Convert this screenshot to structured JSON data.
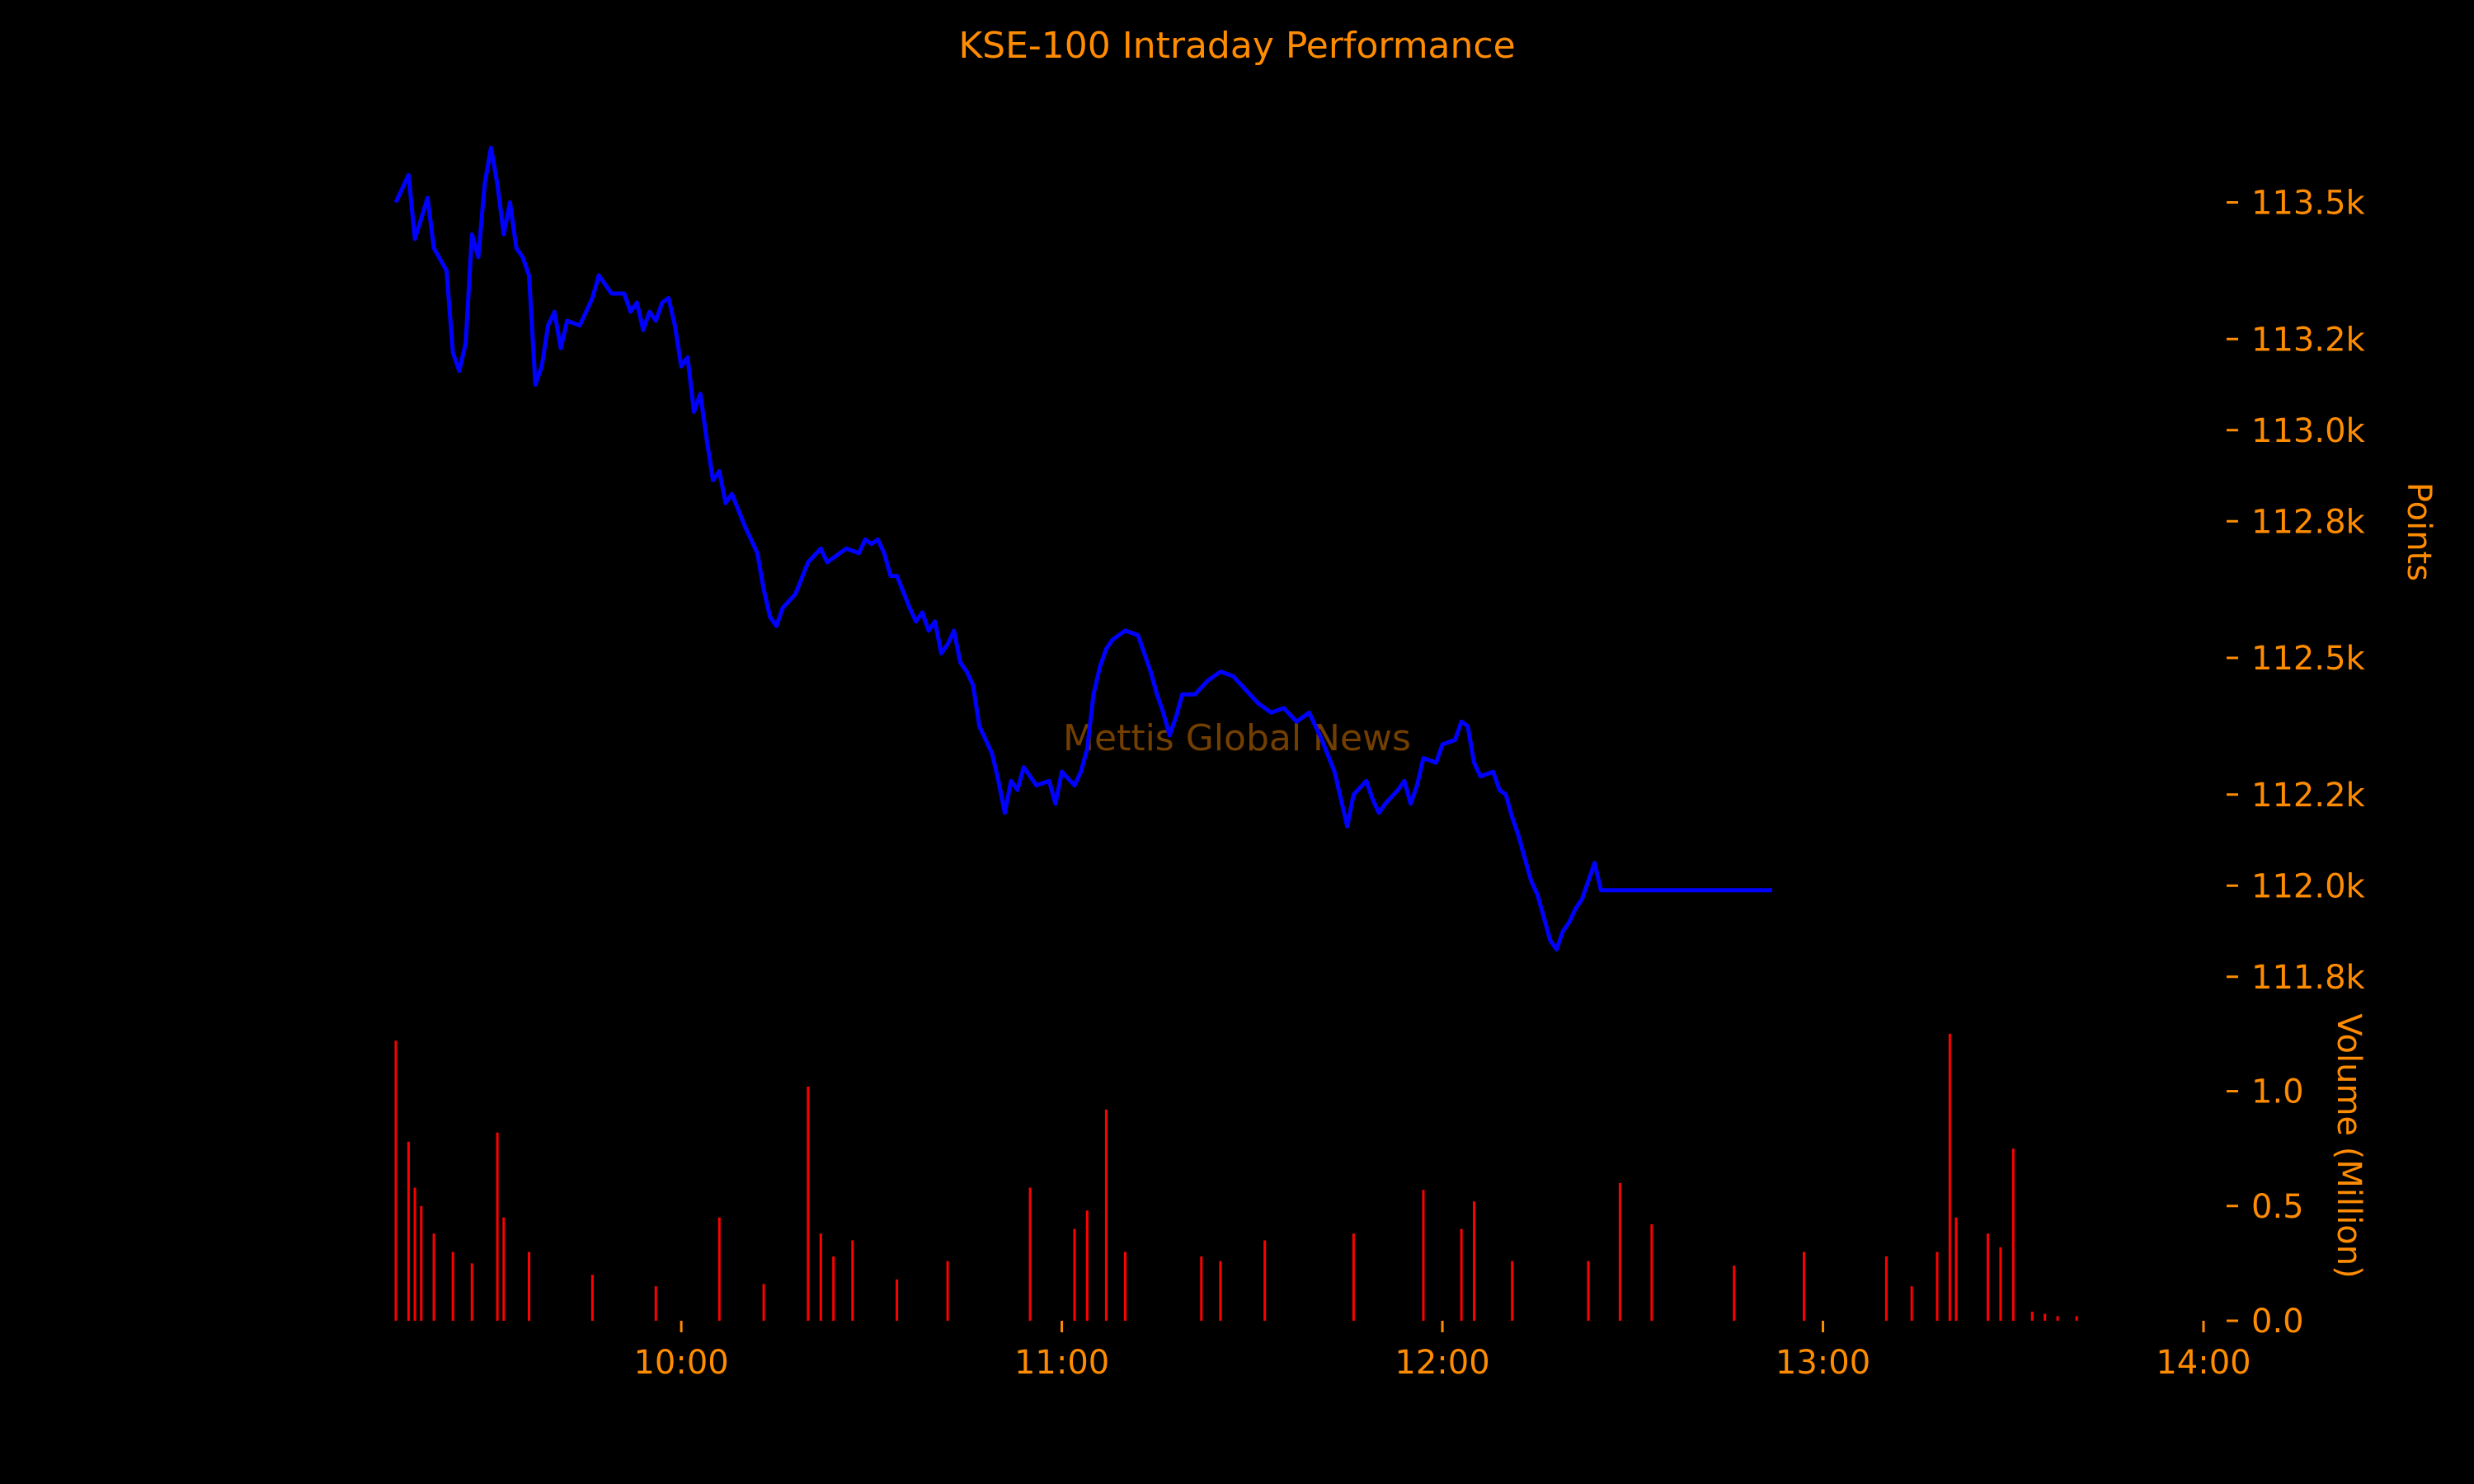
{
  "chart_data": [
    {
      "type": "line",
      "title": "KSE-100 Intraday Performance",
      "watermark": "Mettis Global News",
      "ylabel": "Points",
      "ylim": [
        111700,
        113700
      ],
      "yticks": [
        111800,
        112000,
        112200,
        112500,
        112800,
        113000,
        113200,
        113500
      ],
      "ytick_labels": [
        "111.8k",
        "112.0k",
        "112.2k",
        "112.5k",
        "112.8k",
        "113.0k",
        "113.2k",
        "113.5k"
      ],
      "xlim": [
        "09:15",
        "14:00"
      ],
      "series": [
        {
          "color": "#0000ff",
          "points": [
            [
              "09:15",
              113500
            ],
            [
              "09:17",
              113560
            ],
            [
              "09:18",
              113420
            ],
            [
              "09:20",
              113510
            ],
            [
              "09:21",
              113400
            ],
            [
              "09:23",
              113350
            ],
            [
              "09:24",
              113170
            ],
            [
              "09:25",
              113130
            ],
            [
              "09:26",
              113190
            ],
            [
              "09:27",
              113430
            ],
            [
              "09:28",
              113380
            ],
            [
              "09:29",
              113540
            ],
            [
              "09:30",
              113620
            ],
            [
              "09:31",
              113540
            ],
            [
              "09:32",
              113430
            ],
            [
              "09:33",
              113500
            ],
            [
              "09:34",
              113400
            ],
            [
              "09:35",
              113380
            ],
            [
              "09:36",
              113340
            ],
            [
              "09:37",
              113100
            ],
            [
              "09:38",
              113140
            ],
            [
              "09:39",
              113230
            ],
            [
              "09:40",
              113260
            ],
            [
              "09:41",
              113180
            ],
            [
              "09:42",
              113240
            ],
            [
              "09:44",
              113230
            ],
            [
              "09:45",
              113260
            ],
            [
              "09:46",
              113290
            ],
            [
              "09:47",
              113340
            ],
            [
              "09:49",
              113300
            ],
            [
              "09:51",
              113300
            ],
            [
              "09:52",
              113260
            ],
            [
              "09:53",
              113280
            ],
            [
              "09:54",
              113220
            ],
            [
              "09:55",
              113260
            ],
            [
              "09:56",
              113240
            ],
            [
              "09:57",
              113280
            ],
            [
              "09:58",
              113290
            ],
            [
              "09:59",
              113230
            ],
            [
              "10:00",
              113140
            ],
            [
              "10:01",
              113160
            ],
            [
              "10:02",
              113040
            ],
            [
              "10:03",
              113080
            ],
            [
              "10:04",
              112980
            ],
            [
              "10:05",
              112890
            ],
            [
              "10:06",
              112910
            ],
            [
              "10:07",
              112840
            ],
            [
              "10:08",
              112860
            ],
            [
              "10:10",
              112790
            ],
            [
              "10:12",
              112730
            ],
            [
              "10:13",
              112650
            ],
            [
              "10:14",
              112590
            ],
            [
              "10:15",
              112570
            ],
            [
              "10:16",
              112610
            ],
            [
              "10:18",
              112640
            ],
            [
              "10:20",
              112710
            ],
            [
              "10:22",
              112740
            ],
            [
              "10:23",
              112710
            ],
            [
              "10:24",
              112720
            ],
            [
              "10:26",
              112740
            ],
            [
              "10:28",
              112730
            ],
            [
              "10:29",
              112760
            ],
            [
              "10:30",
              112750
            ],
            [
              "10:31",
              112760
            ],
            [
              "10:32",
              112730
            ],
            [
              "10:33",
              112680
            ],
            [
              "10:34",
              112680
            ],
            [
              "10:36",
              112610
            ],
            [
              "10:37",
              112580
            ],
            [
              "10:38",
              112600
            ],
            [
              "10:39",
              112560
            ],
            [
              "10:40",
              112580
            ],
            [
              "10:41",
              112510
            ],
            [
              "10:42",
              112530
            ],
            [
              "10:43",
              112560
            ],
            [
              "10:44",
              112490
            ],
            [
              "10:45",
              112470
            ],
            [
              "10:46",
              112440
            ],
            [
              "10:47",
              112350
            ],
            [
              "10:48",
              112320
            ],
            [
              "10:49",
              112290
            ],
            [
              "10:50",
              112230
            ],
            [
              "10:51",
              112160
            ],
            [
              "10:52",
              112230
            ],
            [
              "10:53",
              112210
            ],
            [
              "10:54",
              112260
            ],
            [
              "10:56",
              112220
            ],
            [
              "10:58",
              112230
            ],
            [
              "10:59",
              112180
            ],
            [
              "11:00",
              112250
            ],
            [
              "11:02",
              112220
            ],
            [
              "11:03",
              112250
            ],
            [
              "11:04",
              112300
            ],
            [
              "11:05",
              112420
            ],
            [
              "11:06",
              112480
            ],
            [
              "11:07",
              112520
            ],
            [
              "11:08",
              112540
            ],
            [
              "11:10",
              112560
            ],
            [
              "11:12",
              112550
            ],
            [
              "11:13",
              112510
            ],
            [
              "11:14",
              112470
            ],
            [
              "11:15",
              112420
            ],
            [
              "11:16",
              112380
            ],
            [
              "11:17",
              112330
            ],
            [
              "11:18",
              112370
            ],
            [
              "11:19",
              112420
            ],
            [
              "11:21",
              112420
            ],
            [
              "11:23",
              112450
            ],
            [
              "11:25",
              112470
            ],
            [
              "11:27",
              112460
            ],
            [
              "11:29",
              112430
            ],
            [
              "11:31",
              112400
            ],
            [
              "11:33",
              112380
            ],
            [
              "11:35",
              112390
            ],
            [
              "11:37",
              112360
            ],
            [
              "11:39",
              112380
            ],
            [
              "11:41",
              112320
            ],
            [
              "11:43",
              112250
            ],
            [
              "11:44",
              112190
            ],
            [
              "11:45",
              112130
            ],
            [
              "11:46",
              112200
            ],
            [
              "11:48",
              112230
            ],
            [
              "11:49",
              112190
            ],
            [
              "11:50",
              112160
            ],
            [
              "11:51",
              112180
            ],
            [
              "11:53",
              112210
            ],
            [
              "11:54",
              112230
            ],
            [
              "11:55",
              112180
            ],
            [
              "11:56",
              112220
            ],
            [
              "11:57",
              112280
            ],
            [
              "11:59",
              112270
            ],
            [
              "12:00",
              112310
            ],
            [
              "12:02",
              112320
            ],
            [
              "12:03",
              112360
            ],
            [
              "12:04",
              112350
            ],
            [
              "12:05",
              112270
            ],
            [
              "12:06",
              112240
            ],
            [
              "12:08",
              112250
            ],
            [
              "12:09",
              112210
            ],
            [
              "12:10",
              112200
            ],
            [
              "12:11",
              112150
            ],
            [
              "12:12",
              112110
            ],
            [
              "12:13",
              112060
            ],
            [
              "12:14",
              112010
            ],
            [
              "12:15",
              111980
            ],
            [
              "12:16",
              111930
            ],
            [
              "12:17",
              111880
            ],
            [
              "12:18",
              111860
            ],
            [
              "12:19",
              111900
            ],
            [
              "12:20",
              111920
            ],
            [
              "12:21",
              111950
            ],
            [
              "12:22",
              111970
            ],
            [
              "12:23",
              112010
            ],
            [
              "12:24",
              112050
            ],
            [
              "12:25",
              111990
            ],
            [
              "12:26",
              111990
            ],
            [
              "12:30",
              111990
            ],
            [
              "12:35",
              111990
            ],
            [
              "12:40",
              111990
            ],
            [
              "12:45",
              111990
            ],
            [
              "12:50",
              111990
            ],
            [
              "12:52",
              111990
            ]
          ]
        }
      ]
    },
    {
      "type": "bar",
      "ylabel": "Volume (Million)",
      "ylim": [
        0,
        1.3
      ],
      "yticks": [
        0,
        0.5,
        1.0
      ],
      "ytick_labels": [
        "0.0",
        "0.5",
        "1.0"
      ],
      "xlim": [
        "09:15",
        "14:00"
      ],
      "xticks": [
        "10:00",
        "11:00",
        "12:00",
        "13:00",
        "14:00"
      ],
      "xtick_labels": [
        "10:00",
        "11:00",
        "12:00",
        "13:00",
        "14:00"
      ],
      "series": [
        {
          "color": "#ff0000",
          "points": [
            [
              "09:15",
              1.22
            ],
            [
              "09:17",
              0.78
            ],
            [
              "09:18",
              0.58
            ],
            [
              "09:19",
              0.5
            ],
            [
              "09:21",
              0.38
            ],
            [
              "09:24",
              0.3
            ],
            [
              "09:27",
              0.25
            ],
            [
              "09:31",
              0.82
            ],
            [
              "09:32",
              0.45
            ],
            [
              "09:36",
              0.3
            ],
            [
              "09:46",
              0.2
            ],
            [
              "09:56",
              0.15
            ],
            [
              "10:06",
              0.45
            ],
            [
              "10:13",
              0.16
            ],
            [
              "10:20",
              1.02
            ],
            [
              "10:22",
              0.38
            ],
            [
              "10:24",
              0.28
            ],
            [
              "10:27",
              0.35
            ],
            [
              "10:34",
              0.18
            ],
            [
              "10:42",
              0.26
            ],
            [
              "10:55",
              0.58
            ],
            [
              "11:02",
              0.4
            ],
            [
              "11:04",
              0.48
            ],
            [
              "11:07",
              0.92
            ],
            [
              "11:10",
              0.3
            ],
            [
              "11:22",
              0.28
            ],
            [
              "11:25",
              0.26
            ],
            [
              "11:32",
              0.35
            ],
            [
              "11:46",
              0.38
            ],
            [
              "11:57",
              0.57
            ],
            [
              "12:03",
              0.4
            ],
            [
              "12:05",
              0.52
            ],
            [
              "12:11",
              0.26
            ],
            [
              "12:23",
              0.26
            ],
            [
              "12:28",
              0.6
            ],
            [
              "12:33",
              0.42
            ],
            [
              "12:46",
              0.24
            ],
            [
              "12:57",
              0.3
            ],
            [
              "13:10",
              0.28
            ],
            [
              "13:14",
              0.15
            ],
            [
              "13:18",
              0.3
            ],
            [
              "13:20",
              1.25
            ],
            [
              "13:21",
              0.45
            ],
            [
              "13:26",
              0.38
            ],
            [
              "13:28",
              0.32
            ],
            [
              "13:30",
              0.75
            ],
            [
              "13:33",
              0.04
            ],
            [
              "13:35",
              0.03
            ],
            [
              "13:37",
              0.02
            ],
            [
              "13:40",
              0.02
            ]
          ]
        }
      ]
    }
  ]
}
